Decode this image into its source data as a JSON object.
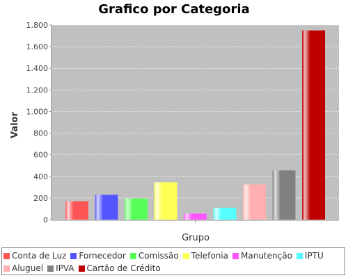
{
  "chart_data": {
    "type": "bar",
    "title": "Grafico por Categoria",
    "xlabel": "Grupo",
    "ylabel": "Valor",
    "categories": [
      "Grupo"
    ],
    "ylim": [
      0,
      1800
    ],
    "yticks": [
      0,
      200,
      400,
      600,
      800,
      1000,
      1200,
      1400,
      1600,
      1800
    ],
    "ytick_labels": [
      "0",
      "200",
      "400",
      "600",
      "800",
      "1.000",
      "1.200",
      "1.400",
      "1.600",
      "1.800"
    ],
    "grid": true,
    "legend_position": "bottom",
    "background": "#c0c0c0",
    "series": [
      {
        "name": "Conta de Luz",
        "values": [
          170
        ],
        "color": "#ff5555"
      },
      {
        "name": "Fornecedor",
        "values": [
          230
        ],
        "color": "#5555ff"
      },
      {
        "name": "Comissão",
        "values": [
          195
        ],
        "color": "#55ff55"
      },
      {
        "name": "Telefonia",
        "values": [
          345
        ],
        "color": "#ffff55"
      },
      {
        "name": "Manutenção",
        "values": [
          55
        ],
        "color": "#ff55ff"
      },
      {
        "name": "IPTU",
        "values": [
          110
        ],
        "color": "#55ffff"
      },
      {
        "name": "Aluguel",
        "values": [
          325
        ],
        "color": "#ffafaf"
      },
      {
        "name": "IPVA",
        "values": [
          455
        ],
        "color": "#808080"
      },
      {
        "name": "Cartão de Crédito",
        "values": [
          1750
        ],
        "color": "#c00000"
      }
    ]
  }
}
